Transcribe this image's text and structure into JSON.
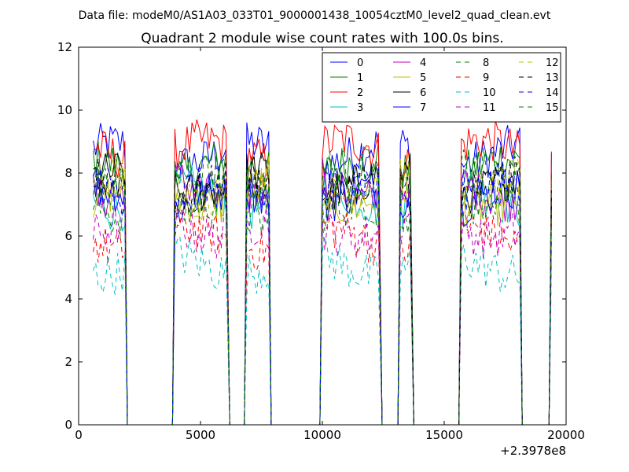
{
  "header": {
    "suptitle": "Data file: modeM0/AS1A03_033T01_9000001438_10054cztM0_level2_quad_clean.evt"
  },
  "chart_data": {
    "type": "line",
    "title": "Quadrant 2 module wise count rates with 100.0s bins.",
    "xlabel": "",
    "ylabel": "",
    "x_offset_label": "+2.3978e8",
    "xlim": [
      0,
      20000
    ],
    "ylim": [
      0,
      12
    ],
    "xticks": [
      0,
      5000,
      10000,
      15000,
      20000
    ],
    "xtick_labels": [
      "0",
      "5000",
      "10000",
      "15000",
      "20000"
    ],
    "yticks": [
      0,
      2,
      4,
      6,
      8,
      10,
      12
    ],
    "ytick_labels": [
      "0",
      "2",
      "4",
      "6",
      "8",
      "10",
      "12"
    ],
    "grid": false,
    "legend_position": "top-right",
    "legend_ncol": 4,
    "segments": [
      {
        "start": 600,
        "end": 1900
      },
      {
        "start": 3950,
        "end": 6100
      },
      {
        "start": 6900,
        "end": 7800
      },
      {
        "start": 10000,
        "end": 12350
      },
      {
        "start": 13200,
        "end": 13650
      },
      {
        "start": 15700,
        "end": 18100
      },
      {
        "start": 19400,
        "end": 19400
      }
    ],
    "series": [
      {
        "name": "0",
        "color": "#0000ff",
        "dash": "solid",
        "mean": 8.6
      },
      {
        "name": "1",
        "color": "#008000",
        "dash": "solid",
        "mean": 8.1
      },
      {
        "name": "2",
        "color": "#ff0000",
        "dash": "solid",
        "mean": 8.7
      },
      {
        "name": "3",
        "color": "#00bfbf",
        "dash": "solid",
        "mean": 7.2
      },
      {
        "name": "4",
        "color": "#bf00bf",
        "dash": "solid",
        "mean": 7.5
      },
      {
        "name": "5",
        "color": "#bfbf00",
        "dash": "solid",
        "mean": 7.3
      },
      {
        "name": "6",
        "color": "#000000",
        "dash": "solid",
        "mean": 7.7
      },
      {
        "name": "7",
        "color": "#0000ff",
        "dash": "solid",
        "mean": 7.2
      },
      {
        "name": "8",
        "color": "#008000",
        "dash": "dashed",
        "mean": 6.7
      },
      {
        "name": "9",
        "color": "#ff0000",
        "dash": "dashed",
        "mean": 5.9
      },
      {
        "name": "10",
        "color": "#00bfbf",
        "dash": "dashed",
        "mean": 5.1
      },
      {
        "name": "11",
        "color": "#bf00bf",
        "dash": "dashed",
        "mean": 6.3
      },
      {
        "name": "12",
        "color": "#bfbf00",
        "dash": "dashed",
        "mean": 7.6
      },
      {
        "name": "13",
        "color": "#000000",
        "dash": "dashed",
        "mean": 7.5
      },
      {
        "name": "14",
        "color": "#0000ff",
        "dash": "dashed",
        "mean": 7.4
      },
      {
        "name": "15",
        "color": "#008000",
        "dash": "dashed",
        "mean": 7.8
      }
    ]
  }
}
